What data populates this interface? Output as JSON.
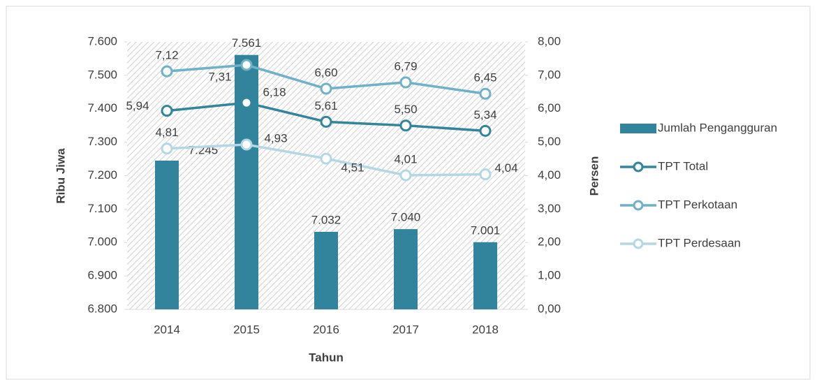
{
  "chart_data": {
    "type": "bar_line",
    "x_label": "Tahun",
    "y_label": "Ribu Jiwa",
    "y2_label": "Persen",
    "categories": [
      "2014",
      "2015",
      "2016",
      "2017",
      "2018"
    ],
    "series": [
      {
        "name": "Jumlah Pengangguran",
        "type": "bar",
        "color": "#31849b",
        "values": [
          7245,
          7561,
          7032,
          7040,
          7001
        ],
        "value_labels": [
          "7.245",
          "7.561",
          "7.032",
          "7.040",
          "7.001"
        ]
      },
      {
        "name": "TPT Total",
        "type": "line",
        "axis": "y2",
        "color": "#31859c",
        "values": [
          5.94,
          6.18,
          5.61,
          5.5,
          5.34
        ],
        "value_labels": [
          "5,94",
          "6,18",
          "5,61",
          "5,50",
          "5,34"
        ]
      },
      {
        "name": "TPT Perkotaan",
        "type": "line",
        "axis": "y2",
        "color": "#6eb1c9",
        "values": [
          7.12,
          7.31,
          6.6,
          6.79,
          6.45
        ],
        "value_labels": [
          "7,12",
          "7,31",
          "6,60",
          "6,79",
          "6,45"
        ]
      },
      {
        "name": "TPT Perdesaan",
        "type": "line",
        "axis": "y2",
        "color": "#b4d7e5",
        "values": [
          4.81,
          4.93,
          4.51,
          4.01,
          4.04
        ],
        "value_labels": [
          "4,81",
          "4,93",
          "4,51",
          "4,01",
          "4,04"
        ]
      }
    ],
    "ylim": [
      6800,
      7600
    ],
    "yticks": [
      {
        "value": 6800,
        "label": "6.800"
      },
      {
        "value": 6900,
        "label": "6.900"
      },
      {
        "value": 7000,
        "label": "7.000"
      },
      {
        "value": 7100,
        "label": "7.100"
      },
      {
        "value": 7200,
        "label": "7.200"
      },
      {
        "value": 7300,
        "label": "7.300"
      },
      {
        "value": 7400,
        "label": "7.400"
      },
      {
        "value": 7500,
        "label": "7.500"
      },
      {
        "value": 7600,
        "label": "7.600"
      }
    ],
    "y2lim": [
      0,
      8
    ],
    "y2ticks": [
      {
        "value": 0,
        "label": "0,00"
      },
      {
        "value": 1,
        "label": "1,00"
      },
      {
        "value": 2,
        "label": "2,00"
      },
      {
        "value": 3,
        "label": "3,00"
      },
      {
        "value": 4,
        "label": "4,00"
      },
      {
        "value": 5,
        "label": "5,00"
      },
      {
        "value": 6,
        "label": "6,00"
      },
      {
        "value": 7,
        "label": "7,00"
      },
      {
        "value": 8,
        "label": "8,00"
      }
    ],
    "legend": "right"
  }
}
